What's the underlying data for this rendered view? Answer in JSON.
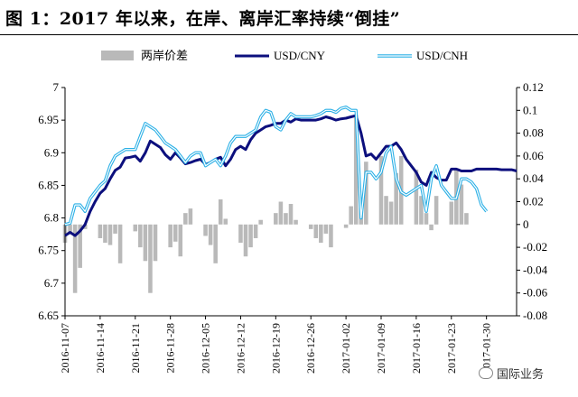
{
  "title": "图 1：2017 年以来，在岸、离岸汇率持续“倒挂”",
  "watermark": "国际业务",
  "colors": {
    "cny": "#0c0f7d",
    "cnh": "#2bb0e6",
    "bar": "#b9b9b9",
    "axis": "#000000"
  },
  "chart_data": {
    "type": "line",
    "legend_position": "top",
    "grid": false,
    "x_tick_labels": [
      "2016-11-07",
      "2016-11-14",
      "2016-11-21",
      "2016-11-28",
      "2016-12-05",
      "2016-12-12",
      "2016-12-19",
      "2016-12-26",
      "2017-01-02",
      "2017-01-09",
      "2017-01-16",
      "2017-01-23",
      "2017-01-30"
    ],
    "x_tick_positions": [
      0,
      7,
      14,
      21,
      28,
      35,
      42,
      49,
      56,
      63,
      70,
      77,
      84
    ],
    "left_axis": {
      "ylim": [
        6.65,
        7.0
      ],
      "ticks": [
        "6.65",
        "6.7",
        "6.75",
        "6.8",
        "6.85",
        "6.9",
        "6.95",
        "7"
      ]
    },
    "right_axis": {
      "ylim": [
        -0.08,
        0.12
      ],
      "ticks": [
        "-0.08",
        "-0.06",
        "-0.04",
        "-0.02",
        "0",
        "0.02",
        "0.04",
        "0.06",
        "0.08",
        "0.1",
        "0.12"
      ]
    },
    "series": [
      {
        "name": "两岸价差",
        "type": "bar",
        "axis": "right",
        "x": [
          0,
          1,
          2,
          3,
          4,
          7,
          8,
          9,
          10,
          11,
          14,
          15,
          16,
          17,
          18,
          21,
          22,
          23,
          24,
          25,
          28,
          29,
          30,
          31,
          32,
          35,
          36,
          37,
          38,
          39,
          42,
          43,
          44,
          45,
          46,
          49,
          50,
          51,
          52,
          53,
          56,
          57,
          58,
          59,
          60,
          63,
          64,
          65,
          66,
          67,
          70,
          71,
          72,
          73,
          74,
          77,
          78,
          79,
          80
        ],
        "values": [
          -0.016,
          -0.008,
          -0.06,
          -0.038,
          -0.004,
          -0.012,
          -0.016,
          -0.018,
          -0.008,
          -0.034,
          -0.006,
          -0.02,
          -0.032,
          -0.06,
          -0.032,
          -0.02,
          -0.015,
          -0.028,
          0.01,
          0.014,
          -0.01,
          -0.018,
          -0.034,
          0.022,
          0.005,
          -0.016,
          -0.028,
          -0.02,
          -0.012,
          0.004,
          0.01,
          0.02,
          0.01,
          0.018,
          0.004,
          -0.004,
          -0.012,
          -0.016,
          -0.008,
          -0.02,
          -0.003,
          0.016,
          0.096,
          0.015,
          0.055,
          0.06,
          0.025,
          0.02,
          0.045,
          0.06,
          0.048,
          0.025,
          0.01,
          -0.005,
          0.025,
          0.02,
          0.048,
          0.035,
          0.01
        ]
      },
      {
        "name": "USD/CNY",
        "type": "line",
        "axis": "left",
        "x": [
          0,
          1,
          2,
          3,
          4,
          5,
          6,
          7,
          8,
          9,
          10,
          11,
          12,
          13,
          14,
          15,
          16,
          17,
          18,
          19,
          20,
          21,
          22,
          23,
          24,
          25,
          26,
          27,
          28,
          29,
          30,
          31,
          32,
          33,
          34,
          35,
          36,
          37,
          38,
          39,
          40,
          41,
          42,
          43,
          44,
          45,
          46,
          47,
          48,
          49,
          50,
          51,
          52,
          53,
          54,
          55,
          56,
          57,
          58,
          59,
          60,
          61,
          62,
          63,
          64,
          65,
          66,
          67,
          68,
          69,
          70,
          71,
          72,
          73,
          74,
          75,
          76,
          77,
          78,
          79,
          80,
          81,
          82,
          83,
          84,
          85,
          86,
          87,
          88,
          89,
          90
        ],
        "values": [
          6.773,
          6.778,
          6.773,
          6.78,
          6.79,
          6.81,
          6.825,
          6.838,
          6.845,
          6.86,
          6.873,
          6.878,
          6.892,
          6.893,
          6.895,
          6.887,
          6.9,
          6.918,
          6.913,
          6.908,
          6.897,
          6.89,
          6.9,
          6.892,
          6.883,
          6.885,
          6.888,
          6.89,
          6.882,
          6.885,
          6.89,
          6.893,
          6.88,
          6.89,
          6.905,
          6.91,
          6.905,
          6.92,
          6.93,
          6.935,
          6.94,
          6.942,
          6.945,
          6.945,
          6.95,
          6.947,
          6.952,
          6.95,
          6.95,
          6.95,
          6.95,
          6.952,
          6.955,
          6.953,
          6.95,
          6.952,
          6.953,
          6.955,
          6.957,
          6.93,
          6.895,
          6.898,
          6.89,
          6.9,
          6.91,
          6.91,
          6.915,
          6.905,
          6.89,
          6.88,
          6.87,
          6.855,
          6.85,
          6.87,
          6.862,
          6.858,
          6.858,
          6.875,
          6.875,
          6.872,
          6.872,
          6.872,
          6.875,
          6.875,
          6.875,
          6.875,
          6.875,
          6.874,
          6.874,
          6.874,
          6.872
        ]
      },
      {
        "name": "USD/CNH",
        "type": "line",
        "axis": "left",
        "x": [
          0,
          1,
          2,
          3,
          4,
          5,
          6,
          7,
          8,
          9,
          10,
          11,
          12,
          13,
          14,
          15,
          16,
          17,
          18,
          19,
          20,
          21,
          22,
          23,
          24,
          25,
          26,
          27,
          28,
          29,
          30,
          31,
          32,
          33,
          34,
          35,
          36,
          37,
          38,
          39,
          40,
          41,
          42,
          43,
          44,
          45,
          46,
          47,
          48,
          49,
          50,
          51,
          52,
          53,
          54,
          55,
          56,
          57,
          58,
          59,
          60,
          61,
          62,
          63,
          64,
          65,
          66,
          67,
          68,
          69,
          70,
          71,
          72,
          73,
          74,
          75,
          76,
          77,
          78,
          79,
          80,
          81,
          82,
          83,
          84
        ],
        "values": [
          6.79,
          6.792,
          6.82,
          6.82,
          6.81,
          6.83,
          6.84,
          6.85,
          6.857,
          6.88,
          6.895,
          6.9,
          6.905,
          6.905,
          6.905,
          6.925,
          6.945,
          6.94,
          6.935,
          6.925,
          6.915,
          6.91,
          6.905,
          6.895,
          6.885,
          6.895,
          6.9,
          6.9,
          6.88,
          6.885,
          6.89,
          6.88,
          6.895,
          6.915,
          6.925,
          6.925,
          6.925,
          6.93,
          6.935,
          6.955,
          6.965,
          6.962,
          6.94,
          6.935,
          6.95,
          6.96,
          6.955,
          6.955,
          6.955,
          6.955,
          6.957,
          6.96,
          6.965,
          6.965,
          6.962,
          6.968,
          6.97,
          6.965,
          6.965,
          6.8,
          6.87,
          6.87,
          6.86,
          6.87,
          6.9,
          6.91,
          6.86,
          6.84,
          6.835,
          6.84,
          6.845,
          6.85,
          6.81,
          6.86,
          6.88,
          6.85,
          6.84,
          6.83,
          6.83,
          6.86,
          6.86,
          6.855,
          6.845,
          6.82,
          6.81
        ]
      }
    ]
  }
}
